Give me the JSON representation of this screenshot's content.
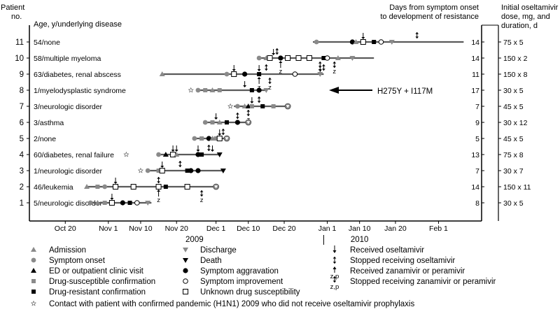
{
  "chart_data": {
    "type": "timeline",
    "headers": {
      "patient_no": [
        "Patient",
        "no."
      ],
      "age_disease": "Age, y/underlying disease",
      "days_to_resistance": [
        "Days from symptom onset",
        "to development of resistance"
      ],
      "initial_dose": [
        "Initial oseltamivir",
        "dose, mg, and",
        "duration, d"
      ]
    },
    "x_ticks": [
      "Oct 20",
      "Nov 1",
      "Nov 10",
      "Nov 20",
      "Dec 1",
      "Dec 10",
      "Dec 20",
      "Jan 1",
      "Jan 10",
      "Jan 20",
      "Feb 1"
    ],
    "x_tick_dates": [
      "2009-10-20",
      "2009-11-01",
      "2009-11-10",
      "2009-11-20",
      "2009-12-01",
      "2009-12-10",
      "2009-12-20",
      "2010-01-01",
      "2010-01-10",
      "2010-01-20",
      "2010-02-01"
    ],
    "year_labels": [
      {
        "text": "2009",
        "date": "2009-11-25"
      },
      {
        "text": "2010",
        "date": "2010-01-10"
      }
    ],
    "xlim": [
      "2009-10-10",
      "2010-02-13"
    ],
    "annotation": {
      "text": "H275Y + I117M",
      "row": 8
    },
    "patients": [
      {
        "no": "11",
        "label": "54/none",
        "days": "14",
        "dose": "75 x 5",
        "line": [
          "2009-12-28",
          "2010-02-08"
        ],
        "events": [
          {
            "type": "symptom_onset",
            "date": "2009-12-29"
          },
          {
            "type": "symptom_aggravation",
            "date": "2010-01-08"
          },
          {
            "type": "admission",
            "date": "2010-01-09"
          },
          {
            "type": "received_oseltamivir",
            "date": "2010-01-11"
          },
          {
            "type": "unknown_susceptibility",
            "date": "2010-01-11"
          },
          {
            "type": "resistant_confirmation",
            "date": "2010-01-14"
          },
          {
            "type": "symptom_improvement",
            "date": "2010-01-16"
          },
          {
            "type": "discharge",
            "date": "2010-01-19"
          },
          {
            "type": "stopped_oseltamivir",
            "date": "2010-01-26"
          }
        ]
      },
      {
        "no": "10",
        "label": "58/multiple myeloma",
        "days": "14",
        "dose": "150 x 2",
        "line": [
          "2009-12-13",
          "2010-01-14"
        ],
        "events": [
          {
            "type": "symptom_onset",
            "date": "2009-12-13"
          },
          {
            "type": "admission",
            "date": "2009-12-15"
          },
          {
            "type": "unknown_susceptibility",
            "date": "2009-12-16"
          },
          {
            "type": "received_oseltamivir",
            "date": "2009-12-17"
          },
          {
            "type": "stopped_oseltamivir",
            "date": "2009-12-18"
          },
          {
            "type": "symptom_aggravation",
            "date": "2009-12-19"
          },
          {
            "type": "received_zanamivir_or_peramivir",
            "date": "2009-12-19"
          },
          {
            "type": "unknown_susceptibility",
            "date": "2009-12-21"
          },
          {
            "type": "unknown_susceptibility",
            "date": "2009-12-24"
          },
          {
            "type": "unknown_susceptibility",
            "date": "2009-12-27"
          },
          {
            "type": "stopped_zanamivir_or_peramivir",
            "date": "2009-12-30"
          },
          {
            "type": "resistant_confirmation",
            "date": "2009-12-31"
          },
          {
            "type": "symptom_improvement",
            "date": "2010-01-01"
          },
          {
            "type": "stopped_zanamivir_or_peramivir",
            "date": "2010-01-03"
          },
          {
            "type": "admission",
            "date": "2010-01-04"
          },
          {
            "type": "discharge",
            "date": "2010-01-08"
          }
        ]
      },
      {
        "no": "9",
        "label": "63/diabetes, renal abscess",
        "days": "11",
        "dose": "150 x 8",
        "line": [
          "2009-11-16",
          "2009-12-31"
        ],
        "events": [
          {
            "type": "admission",
            "date": "2009-11-16"
          },
          {
            "type": "symptom_onset",
            "date": "2009-12-04"
          },
          {
            "type": "received_oseltamivir",
            "date": "2009-12-06"
          },
          {
            "type": "unknown_susceptibility",
            "date": "2009-12-06"
          },
          {
            "type": "symptom_aggravation",
            "date": "2009-12-09"
          },
          {
            "type": "received_oseltamivir",
            "date": "2009-12-13"
          },
          {
            "type": "resistant_confirmation",
            "date": "2009-12-13"
          },
          {
            "type": "received_zanamivir_or_peramivir",
            "date": "2009-12-13"
          },
          {
            "type": "stopped_oseltamivir",
            "date": "2009-12-15"
          },
          {
            "type": "stopped_zanamivir_or_peramivir",
            "date": "2009-12-16"
          },
          {
            "type": "symptom_improvement",
            "date": "2009-12-23"
          },
          {
            "type": "received_oseltamivir",
            "date": "2009-12-30"
          },
          {
            "type": "stopped_oseltamivir",
            "date": "2009-12-31"
          },
          {
            "type": "discharge",
            "date": "2009-12-30"
          }
        ]
      },
      {
        "no": "8",
        "label": "1/myelodysplastic syndrome",
        "days": "17",
        "dose": "30 x 5",
        "line": [
          "2009-11-26",
          "2009-12-15"
        ],
        "events": [
          {
            "type": "contact",
            "date": "2009-11-24"
          },
          {
            "type": "symptom_onset",
            "date": "2009-11-26"
          },
          {
            "type": "drug_susceptible_confirmation",
            "date": "2009-11-28"
          },
          {
            "type": "admission",
            "date": "2009-11-30"
          },
          {
            "type": "drug_susceptible_confirmation",
            "date": "2009-12-02"
          },
          {
            "type": "received_oseltamivir",
            "date": "2009-12-09"
          },
          {
            "type": "resistant_confirmation",
            "date": "2009-12-11"
          },
          {
            "type": "symptom_aggravation",
            "date": "2009-12-13"
          },
          {
            "type": "discharge",
            "date": "2009-12-15"
          }
        ]
      },
      {
        "no": "7",
        "label": "3/neurologic disorder",
        "days": "7",
        "dose": "45 x 5",
        "line": [
          "2009-12-06",
          "2009-12-21"
        ],
        "events": [
          {
            "type": "contact",
            "date": "2009-12-05"
          },
          {
            "type": "symptom_onset",
            "date": "2009-12-07"
          },
          {
            "type": "admission",
            "date": "2009-12-09"
          },
          {
            "type": "ed_visit",
            "date": "2009-12-10"
          },
          {
            "type": "drug_susceptible_confirmation",
            "date": "2009-12-11"
          },
          {
            "type": "stopped_zanamivir_or_peramivir",
            "date": "2009-12-10"
          },
          {
            "type": "received_oseltamivir",
            "date": "2009-12-11"
          },
          {
            "type": "stopped_oseltamivir",
            "date": "2009-12-13"
          },
          {
            "type": "resistant_confirmation",
            "date": "2009-12-14"
          },
          {
            "type": "drug_susceptible_confirmation",
            "date": "2009-12-17"
          },
          {
            "type": "discharge_improvement",
            "date": "2009-12-21"
          }
        ]
      },
      {
        "no": "6",
        "label": "3/asthma",
        "days": "9",
        "dose": "30 x 12",
        "line": [
          "2009-11-28",
          "2009-12-10"
        ],
        "events": [
          {
            "type": "symptom_onset",
            "date": "2009-11-28"
          },
          {
            "type": "drug_susceptible_confirmation",
            "date": "2009-11-30"
          },
          {
            "type": "received_oseltamivir",
            "date": "2009-12-01"
          },
          {
            "type": "admission",
            "date": "2009-12-02"
          },
          {
            "type": "resistant_confirmation",
            "date": "2009-12-04"
          },
          {
            "type": "stopped_oseltamivir",
            "date": "2009-12-07"
          },
          {
            "type": "symptom_aggravation",
            "date": "2009-12-07"
          },
          {
            "type": "discharge_improvement",
            "date": "2009-12-10"
          }
        ]
      },
      {
        "no": "5",
        "label": "2/none",
        "days": "5",
        "dose": "45 x 5",
        "line": [
          "2009-11-25",
          "2009-12-04"
        ],
        "events": [
          {
            "type": "symptom_onset",
            "date": "2009-11-25"
          },
          {
            "type": "drug_susceptible_confirmation",
            "date": "2009-11-27"
          },
          {
            "type": "symptom_aggravation",
            "date": "2009-11-29"
          },
          {
            "type": "admission",
            "date": "2009-11-30"
          },
          {
            "type": "drug_susceptible_confirmation",
            "date": "2009-12-01"
          },
          {
            "type": "received_oseltamivir",
            "date": "2009-12-02"
          },
          {
            "type": "unknown_susceptibility",
            "date": "2009-12-02"
          },
          {
            "type": "stopped_oseltamivir",
            "date": "2009-12-03"
          },
          {
            "type": "discharge_improvement",
            "date": "2009-12-04"
          }
        ]
      },
      {
        "no": "4",
        "label": "60/diabetes, renal failure",
        "days": "13",
        "dose": "75 x 8",
        "line": [
          "2009-11-15",
          "2009-12-02"
        ],
        "events": [
          {
            "type": "contact",
            "date": "2009-11-06"
          },
          {
            "type": "symptom_onset",
            "date": "2009-11-15"
          },
          {
            "type": "ed_visit",
            "date": "2009-11-17"
          },
          {
            "type": "received_oseltamivir",
            "date": "2009-11-19"
          },
          {
            "type": "unknown_susceptibility",
            "date": "2009-11-19"
          },
          {
            "type": "received_oseltamivir",
            "date": "2009-11-20"
          },
          {
            "type": "admission",
            "date": "2009-11-20"
          },
          {
            "type": "received_oseltamivir",
            "date": "2009-11-26"
          },
          {
            "type": "symptom_aggravation",
            "date": "2009-11-26"
          },
          {
            "type": "resistant_confirmation",
            "date": "2009-11-27"
          },
          {
            "type": "stopped_oseltamivir",
            "date": "2009-11-29"
          },
          {
            "type": "received_oseltamivir",
            "date": "2009-11-30"
          },
          {
            "type": "death",
            "date": "2009-12-02"
          }
        ]
      },
      {
        "no": "3",
        "label": "1/neurologic disorder",
        "days": "7",
        "dose": "30 x 7",
        "line": [
          "2009-11-12",
          "2009-12-03"
        ],
        "events": [
          {
            "type": "contact",
            "date": "2009-11-10"
          },
          {
            "type": "symptom_onset",
            "date": "2009-11-12"
          },
          {
            "type": "drug_susceptible_confirmation",
            "date": "2009-11-15"
          },
          {
            "type": "received_oseltamivir",
            "date": "2009-11-16"
          },
          {
            "type": "unknown_susceptibility",
            "date": "2009-11-16"
          },
          {
            "type": "stopped_oseltamivir",
            "date": "2009-11-21"
          },
          {
            "type": "resistant_confirmation",
            "date": "2009-11-23"
          },
          {
            "type": "symptom_aggravation",
            "date": "2009-11-24"
          },
          {
            "type": "symptom_aggravation",
            "date": "2009-11-26"
          },
          {
            "type": "death",
            "date": "2009-12-03"
          }
        ]
      },
      {
        "no": "2",
        "label": "46/leukemia",
        "days": "14",
        "dose": "150 x 11",
        "line": [
          "2009-10-26",
          "2009-12-01"
        ],
        "events": [
          {
            "type": "admission",
            "date": "2009-10-26"
          },
          {
            "type": "drug_susceptible_confirmation",
            "date": "2009-10-29"
          },
          {
            "type": "symptom_onset",
            "date": "2009-10-31"
          },
          {
            "type": "received_oseltamivir",
            "date": "2009-11-03"
          },
          {
            "type": "unknown_susceptibility",
            "date": "2009-11-03"
          },
          {
            "type": "unknown_susceptibility",
            "date": "2009-11-08"
          },
          {
            "type": "stopped_oseltamivir",
            "date": "2009-11-15"
          },
          {
            "type": "unknown_susceptibility",
            "date": "2009-11-15"
          },
          {
            "type": "received_zanamivir_or_peramivir",
            "date": "2009-11-15"
          },
          {
            "type": "resistant_confirmation",
            "date": "2009-11-17"
          },
          {
            "type": "unknown_susceptibility",
            "date": "2009-11-23"
          },
          {
            "type": "stopped_zanamivir_or_peramivir",
            "date": "2009-11-27"
          },
          {
            "type": "discharge_improvement",
            "date": "2009-12-01"
          }
        ]
      },
      {
        "no": "1",
        "label": "5/neurologic disorder",
        "days": "8",
        "dose": "30 x 5",
        "line": [
          "2009-10-27",
          "2009-11-13"
        ],
        "events": [
          {
            "type": "symptom_onset",
            "date": "2009-10-27"
          },
          {
            "type": "admission",
            "date": "2009-10-29"
          },
          {
            "type": "drug_susceptible_confirmation",
            "date": "2009-10-31"
          },
          {
            "type": "received_oseltamivir",
            "date": "2009-11-02"
          },
          {
            "type": "unknown_susceptibility",
            "date": "2009-11-02"
          },
          {
            "type": "symptom_aggravation",
            "date": "2009-11-05"
          },
          {
            "type": "resistant_confirmation",
            "date": "2009-11-07"
          },
          {
            "type": "symptom_improvement",
            "date": "2009-11-09"
          },
          {
            "type": "discharge",
            "date": "2009-11-12"
          }
        ]
      }
    ],
    "legend": {
      "columns": [
        [
          {
            "type": "admission",
            "label": "Admission"
          },
          {
            "type": "symptom_onset",
            "label": "Symptom onset"
          },
          {
            "type": "ed_visit",
            "label": "ED or outpatient clinic visit"
          },
          {
            "type": "drug_susceptible_confirmation",
            "label": "Drug-susceptible confirmation"
          },
          {
            "type": "resistant_confirmation",
            "label": "Drug-resistant confirmation"
          }
        ],
        [
          {
            "type": "discharge",
            "label": "Discharge"
          },
          {
            "type": "death",
            "label": "Death"
          },
          {
            "type": "symptom_aggravation",
            "label": "Symptom aggravation"
          },
          {
            "type": "symptom_improvement",
            "label": "Symptom improvement"
          },
          {
            "type": "unknown_susceptibility",
            "label": "Unknown drug susceptibility"
          }
        ],
        [
          {
            "type": "received_oseltamivir",
            "label": "Received oseltamivir"
          },
          {
            "type": "stopped_oseltamivir",
            "label": "Stopped receiving oseltamivir"
          },
          {
            "type": "received_zanamivir_or_peramivir",
            "label": "Received zanamivir or peramivir",
            "sub": "z,p"
          },
          {
            "type": "stopped_zanamivir_or_peramivir",
            "label": "Stopped receiving zanamivir or peramivir",
            "sub": "z,p"
          }
        ]
      ],
      "footer": {
        "type": "contact",
        "label": "Contact with patient with confirmed pandemic (H1N1) 2009 who did not receive oseltamivir prophylaxis"
      }
    },
    "colors": {
      "gray": "#8a8a8a",
      "line": "#5a5a5a",
      "black": "#000000"
    }
  }
}
